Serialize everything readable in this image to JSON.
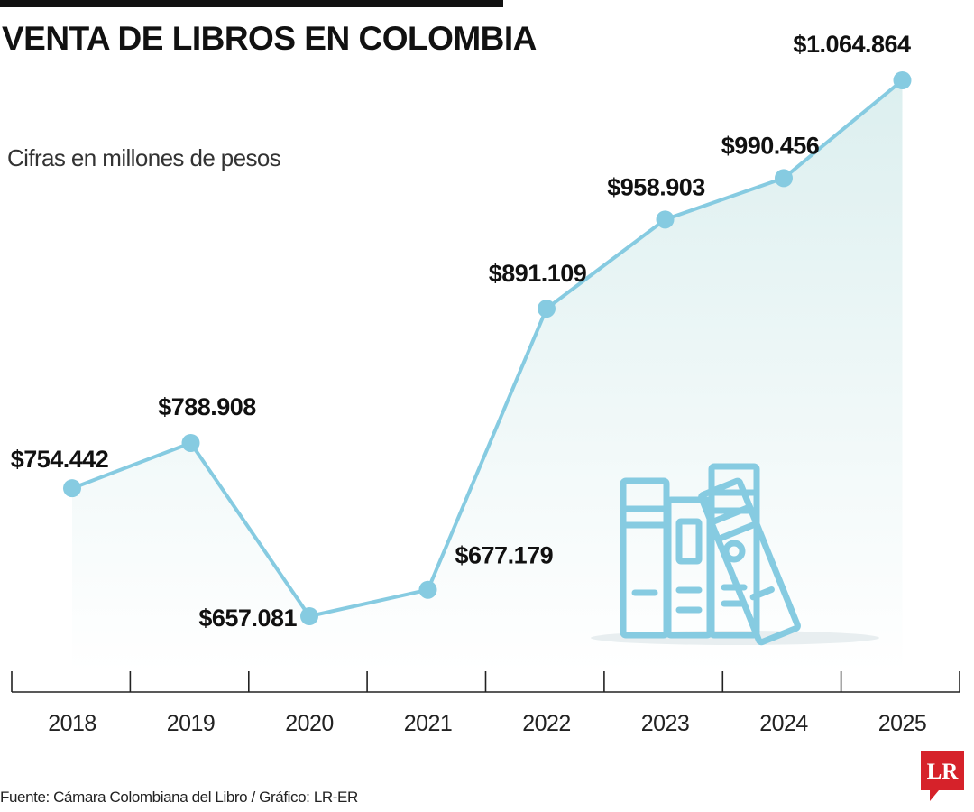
{
  "title": "VENTA DE LIBROS EN COLOMBIA",
  "subtitle": "Cifras en millones de pesos",
  "source": "Fuente: Cámara Colombiana del Libro / Gráfico: LR-ER",
  "logo_text": "LR",
  "colors": {
    "line": "#86cbe1",
    "area_top": "#dcefef",
    "area_bottom": "#ffffff",
    "books": "#86cbe1",
    "logo": "#d6222a",
    "text": "#111111"
  },
  "icon": "books-illustration-icon",
  "chart_data": {
    "type": "area",
    "title": "VENTA DE LIBROS EN COLOMBIA",
    "subtitle": "Cifras en millones de pesos",
    "xlabel": "",
    "ylabel": "",
    "categories": [
      "2018",
      "2019",
      "2020",
      "2021",
      "2022",
      "2023",
      "2024",
      "2025"
    ],
    "values": [
      754442,
      788908,
      657081,
      677179,
      891109,
      958903,
      990456,
      1064864
    ],
    "labels": [
      "$754.442",
      "$788.908",
      "$657.081",
      "$677.179",
      "$891.109",
      "$958.903",
      "$990.456",
      "$1.064.864"
    ],
    "grid": false,
    "legend": "none"
  }
}
